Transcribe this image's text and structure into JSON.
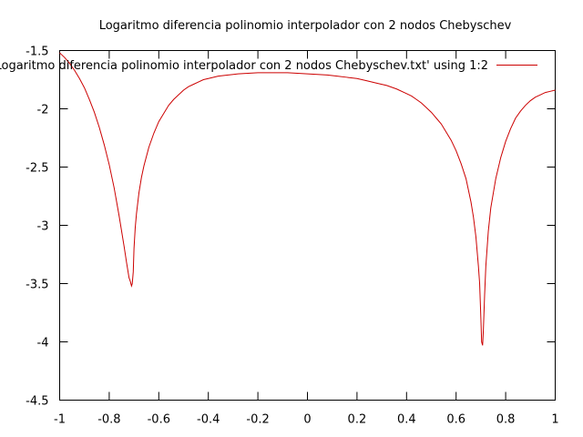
{
  "chart_data": {
    "type": "line",
    "title": "Logaritmo diferencia polinomio interpolador con 2 nodos Chebyschev",
    "xlabel": "",
    "ylabel": "",
    "xlim": [
      -1,
      1
    ],
    "ylim": [
      -4.5,
      -1.5
    ],
    "xticks": [
      -1,
      -0.8,
      -0.6,
      -0.4,
      -0.2,
      0,
      0.2,
      0.4,
      0.6,
      0.8,
      1
    ],
    "xtick_labels": [
      "-1",
      "-0.8",
      "-0.6",
      "-0.4",
      "-0.2",
      "0",
      "0.2",
      "0.4",
      "0.6",
      "0.8",
      "1"
    ],
    "yticks": [
      -4.5,
      -4,
      -3.5,
      -3,
      -2.5,
      -2,
      -1.5
    ],
    "ytick_labels": [
      "-4.5",
      "-4",
      "-3.5",
      "-3",
      "-2.5",
      "-2",
      "-1.5"
    ],
    "grid": false,
    "legend_position": "top-right",
    "series": [
      {
        "name": "'Logaritmo diferencia polinomio interpolador con 2 nodos Chebyschev.txt' using 1:2",
        "color": "#cc0000",
        "x": [
          -1.0,
          -0.98,
          -0.96,
          -0.94,
          -0.92,
          -0.9,
          -0.88,
          -0.86,
          -0.84,
          -0.82,
          -0.8,
          -0.78,
          -0.76,
          -0.74,
          -0.73,
          -0.72,
          -0.715,
          -0.71,
          -0.707,
          -0.703,
          -0.7,
          -0.695,
          -0.69,
          -0.68,
          -0.67,
          -0.66,
          -0.64,
          -0.62,
          -0.6,
          -0.58,
          -0.56,
          -0.54,
          -0.52,
          -0.5,
          -0.48,
          -0.46,
          -0.44,
          -0.42,
          -0.4,
          -0.36,
          -0.32,
          -0.28,
          -0.24,
          -0.2,
          -0.16,
          -0.12,
          -0.08,
          -0.04,
          0.0,
          0.04,
          0.08,
          0.12,
          0.16,
          0.2,
          0.24,
          0.28,
          0.32,
          0.36,
          0.4,
          0.42,
          0.44,
          0.46,
          0.48,
          0.5,
          0.52,
          0.54,
          0.56,
          0.58,
          0.6,
          0.62,
          0.64,
          0.66,
          0.67,
          0.68,
          0.69,
          0.695,
          0.7,
          0.703,
          0.707,
          0.71,
          0.715,
          0.72,
          0.73,
          0.74,
          0.76,
          0.78,
          0.8,
          0.82,
          0.84,
          0.86,
          0.88,
          0.9,
          0.92,
          0.94,
          0.96,
          0.98,
          1.0
        ],
        "y": [
          -1.52,
          -1.56,
          -1.61,
          -1.67,
          -1.74,
          -1.82,
          -1.92,
          -2.03,
          -2.16,
          -2.31,
          -2.48,
          -2.68,
          -2.92,
          -3.18,
          -3.32,
          -3.45,
          -3.48,
          -3.52,
          -3.5,
          -3.4,
          -3.2,
          -3.02,
          -2.9,
          -2.72,
          -2.59,
          -2.49,
          -2.33,
          -2.21,
          -2.11,
          -2.04,
          -1.97,
          -1.92,
          -1.88,
          -1.84,
          -1.81,
          -1.79,
          -1.77,
          -1.75,
          -1.74,
          -1.72,
          -1.71,
          -1.7,
          -1.695,
          -1.69,
          -1.69,
          -1.69,
          -1.69,
          -1.695,
          -1.7,
          -1.705,
          -1.71,
          -1.72,
          -1.73,
          -1.74,
          -1.76,
          -1.78,
          -1.8,
          -1.83,
          -1.87,
          -1.89,
          -1.92,
          -1.95,
          -1.99,
          -2.03,
          -2.08,
          -2.13,
          -2.2,
          -2.27,
          -2.36,
          -2.47,
          -2.6,
          -2.8,
          -2.93,
          -3.1,
          -3.35,
          -3.5,
          -3.8,
          -4.0,
          -4.03,
          -3.9,
          -3.6,
          -3.35,
          -3.05,
          -2.85,
          -2.6,
          -2.42,
          -2.28,
          -2.17,
          -2.08,
          -2.02,
          -1.97,
          -1.93,
          -1.9,
          -1.88,
          -1.86,
          -1.85,
          -1.84
        ]
      }
    ]
  }
}
